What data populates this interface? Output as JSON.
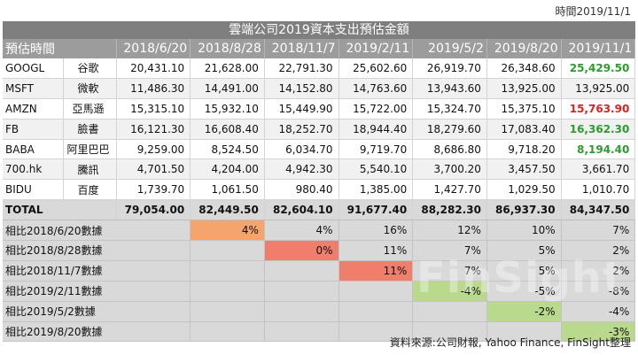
{
  "date_label": "時間2019/11/1",
  "title": "雲端公司2019資本支出預估金額",
  "header": {
    "label": "預估時間",
    "dates": [
      "2018/6/20",
      "2018/8/28",
      "2018/11/7",
      "2019/2/11",
      "2019/5/2",
      "2019/8/20",
      "2019/11/1"
    ]
  },
  "rows": [
    {
      "ticker": "GOOGL",
      "name": "谷歌",
      "values": [
        "20,431.10",
        "21,628.00",
        "22,791.30",
        "25,602.60",
        "26,919.70",
        "26,348.60",
        "25,429.50"
      ],
      "last_color": "#2e9b2e"
    },
    {
      "ticker": "MSFT",
      "name": "微軟",
      "values": [
        "11,486.30",
        "14,491.00",
        "14,152.80",
        "14,763.60",
        "13,943.60",
        "13,925.00",
        "13,925.00"
      ],
      "last_color": ""
    },
    {
      "ticker": "AMZN",
      "name": "亞馬遜",
      "values": [
        "15,315.10",
        "15,932.10",
        "15,449.90",
        "15,722.00",
        "15,324.70",
        "15,375.10",
        "15,763.90"
      ],
      "last_color": "#e02020"
    },
    {
      "ticker": "FB",
      "name": "臉書",
      "values": [
        "16,121.30",
        "16,608.40",
        "18,252.70",
        "18,944.40",
        "18,279.60",
        "17,083.40",
        "16,362.30"
      ],
      "last_color": "#2e9b2e"
    },
    {
      "ticker": "BABA",
      "name": "阿里巴巴",
      "values": [
        "9,259.00",
        "8,524.50",
        "6,034.70",
        "9,719.70",
        "8,686.80",
        "9,718.20",
        "8,194.40"
      ],
      "last_color": "#2e9b2e"
    },
    {
      "ticker": "700.hk",
      "name": "騰訊",
      "values": [
        "4,701.50",
        "4,204.00",
        "4,942.30",
        "5,540.10",
        "3,700.20",
        "3,457.50",
        "3,661.70"
      ],
      "last_color": ""
    },
    {
      "ticker": "BIDU",
      "name": "百度",
      "values": [
        "1,739.70",
        "1,061.50",
        "980.40",
        "1,385.00",
        "1,427.70",
        "1,029.50",
        "1,010.70"
      ],
      "last_color": ""
    }
  ],
  "total": {
    "label": "TOTAL",
    "values": [
      "79,054.00",
      "82,449.50",
      "82,604.10",
      "91,677.40",
      "88,282.30",
      "86,937.30",
      "84,347.50"
    ]
  },
  "comparisons": [
    {
      "label": "相比2018/6/20數據",
      "cells": [
        "4%",
        "4%",
        "16%",
        "12%",
        "10%",
        "7%"
      ]
    },
    {
      "label": "相比2018/8/28數據",
      "cells": [
        "",
        "0%",
        "11%",
        "7%",
        "5%",
        "2%"
      ]
    },
    {
      "label": "相比2018/11/7數據",
      "cells": [
        "",
        "",
        "11%",
        "7%",
        "5%",
        "2%"
      ]
    },
    {
      "label": "相比2019/2/11數據",
      "cells": [
        "",
        "",
        "",
        "-4%",
        "-5%",
        "-8%"
      ]
    },
    {
      "label": "相比2019/5/2數據",
      "cells": [
        "",
        "",
        "",
        "",
        "-2%",
        "-4%"
      ]
    },
    {
      "label": "相比2019/8/20數據",
      "cells": [
        "",
        "",
        "",
        "",
        "",
        "-3%"
      ]
    }
  ],
  "highlight_colors": {
    "orange": "#f4a46c",
    "red": "#ef7e6c",
    "green": "#b9d98c"
  },
  "watermark": "FinSight",
  "source": "資料來源:公司財報, Yahoo Finance, FinSight整理"
}
